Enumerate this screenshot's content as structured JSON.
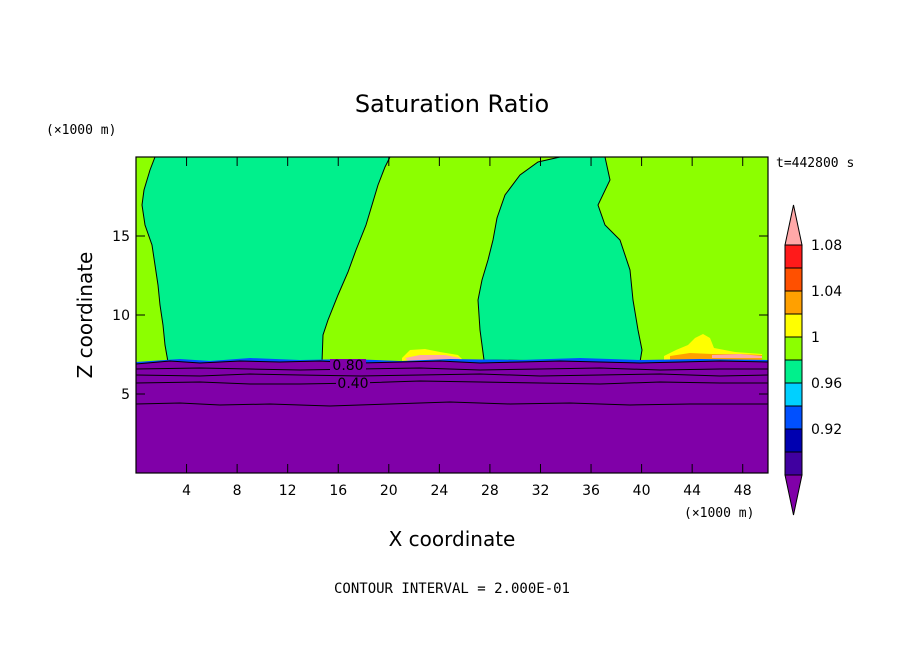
{
  "chart_data": {
    "type": "heatmap",
    "title": "Saturation Ratio",
    "xlabel": "X coordinate",
    "ylabel": "Z coordinate",
    "x_unit": "(×1000 m)",
    "y_unit": "(×1000 m)",
    "time_label": "t=442800 s",
    "footer": "CONTOUR INTERVAL = 2.000E-01",
    "xlim": [
      0,
      50
    ],
    "ylim": [
      0,
      20
    ],
    "x_ticks": [
      {
        "value": 4,
        "label": "4"
      },
      {
        "value": 8,
        "label": "8"
      },
      {
        "value": 12,
        "label": "12"
      },
      {
        "value": 16,
        "label": "16"
      },
      {
        "value": 20,
        "label": "20"
      },
      {
        "value": 24,
        "label": "24"
      },
      {
        "value": 28,
        "label": "28"
      },
      {
        "value": 32,
        "label": "32"
      },
      {
        "value": 36,
        "label": "36"
      },
      {
        "value": 40,
        "label": "40"
      },
      {
        "value": 44,
        "label": "44"
      },
      {
        "value": 48,
        "label": "48"
      }
    ],
    "y_ticks": [
      {
        "value": 5,
        "label": "5"
      },
      {
        "value": 10,
        "label": "10"
      },
      {
        "value": 15,
        "label": "15"
      }
    ],
    "contour_labels": [
      {
        "value": "0.80",
        "x": 16.5,
        "z": 6.9
      },
      {
        "value": "0.40",
        "x": 17.2,
        "z": 5.4
      }
    ],
    "colorbar": {
      "labels": [
        "0.92",
        "0.96",
        "1",
        "1.04",
        "1.08"
      ],
      "levels": [
        {
          "range": "<0.90",
          "color": "#8000a8"
        },
        {
          "range": "0.90-0.92",
          "color": "#4000a0"
        },
        {
          "range": "0.92-0.94",
          "color": "#0000b0"
        },
        {
          "range": "0.94-0.96",
          "color": "#0050ff"
        },
        {
          "range": "0.96-0.98",
          "color": "#00d0ff"
        },
        {
          "range": "0.98-1.00",
          "color": "#00f08c"
        },
        {
          "range": "1.00-1.02",
          "color": "#8cff00"
        },
        {
          "range": "1.02-1.04",
          "color": "#ffff00"
        },
        {
          "range": "1.04-1.06",
          "color": "#ffa000"
        },
        {
          "range": "1.06-1.08",
          "color": "#ff5000"
        },
        {
          "range": "1.08-1.10",
          "color": "#ff1a1a"
        },
        {
          "range": ">1.10",
          "color": "#ffa8a8"
        }
      ]
    }
  }
}
